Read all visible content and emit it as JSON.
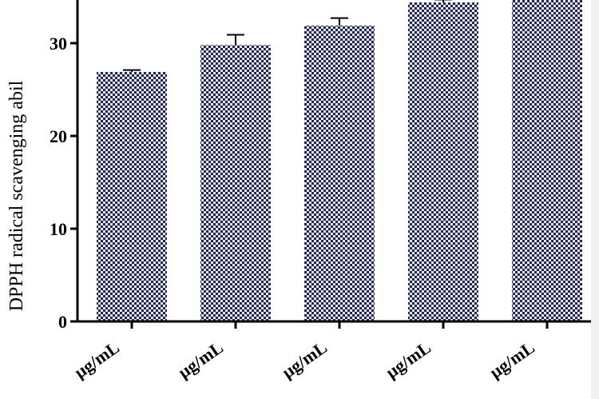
{
  "chart_data": {
    "type": "bar",
    "title": "",
    "xlabel": "",
    "ylabel": "DPPH radical scavenging abil",
    "ylim": [
      0,
      35
    ],
    "yticks": [
      0,
      10,
      20,
      30
    ],
    "categories": [
      "μg/mL",
      "μg/mL",
      "μg/mL",
      "μg/mL",
      "μg/mL"
    ],
    "values": [
      26.9,
      29.8,
      31.9,
      34.4,
      35.0
    ],
    "errors": [
      0.2,
      1.1,
      0.8,
      0.3,
      0.0
    ],
    "grid": false,
    "legend": "none",
    "bar_color": "#23244f",
    "bar_pattern": "checkerboard"
  }
}
